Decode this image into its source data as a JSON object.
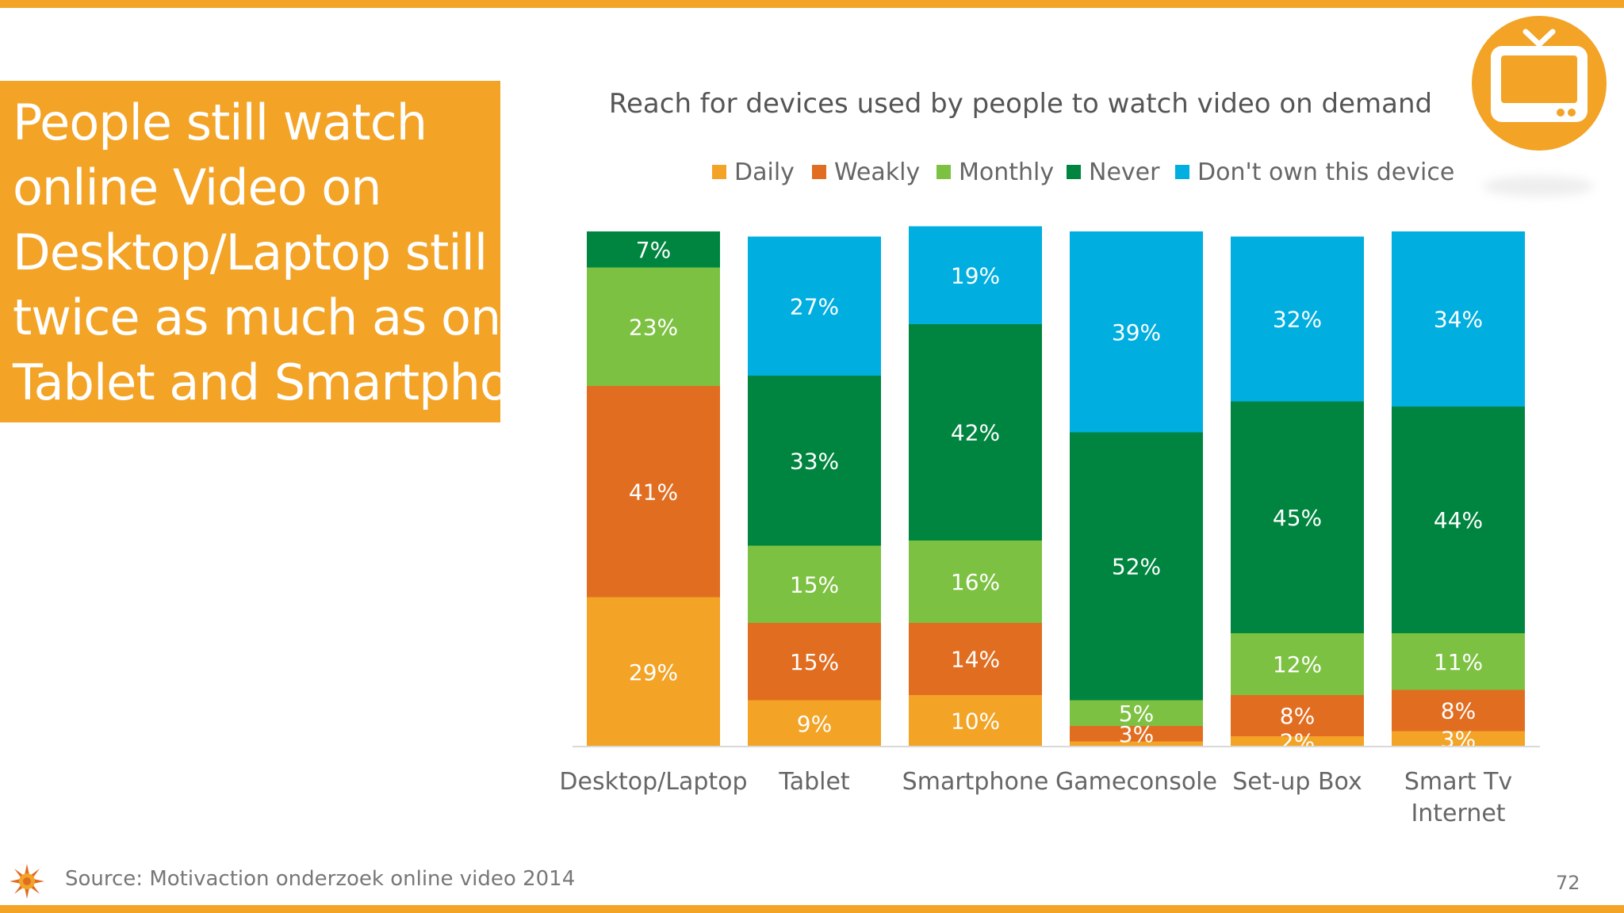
{
  "slide": {
    "headline_lines": [
      "People still watch",
      "online Video on",
      "Desktop/Laptop still",
      "twice as much as on",
      "Tablet and Smartphone"
    ],
    "source": "Source: Motivaction onderzoek online video 2014",
    "page_number": "72",
    "accent_color": "#f3a325",
    "badge_icon": "tv-icon",
    "logo_icon": "sun-logo-icon"
  },
  "chart_data": {
    "type": "bar",
    "stacked": true,
    "title": "Reach for devices used by people to watch video on demand",
    "legend_position": "top",
    "grid": false,
    "ylim": [
      0,
      100
    ],
    "categories": [
      [
        "Desktop/Laptop"
      ],
      [
        "Tablet"
      ],
      [
        "Smartphone"
      ],
      [
        "Gameconsole"
      ],
      [
        "Set-up Box"
      ],
      [
        "Smart Tv",
        "Internet"
      ]
    ],
    "series": [
      {
        "name": "Daily",
        "color": "#f3a325",
        "values": [
          29,
          9,
          10,
          1,
          2,
          3
        ]
      },
      {
        "name": "Weakly",
        "color": "#e16d21",
        "values": [
          41,
          15,
          14,
          3,
          8,
          8
        ]
      },
      {
        "name": "Monthly",
        "color": "#7dc142",
        "values": [
          23,
          15,
          16,
          5,
          12,
          11
        ]
      },
      {
        "name": "Never",
        "color": "#008540",
        "values": [
          7,
          33,
          42,
          52,
          45,
          44
        ]
      },
      {
        "name": "Don't own this device",
        "color": "#00aee0",
        "values": [
          0,
          27,
          19,
          39,
          32,
          34
        ]
      }
    ]
  }
}
